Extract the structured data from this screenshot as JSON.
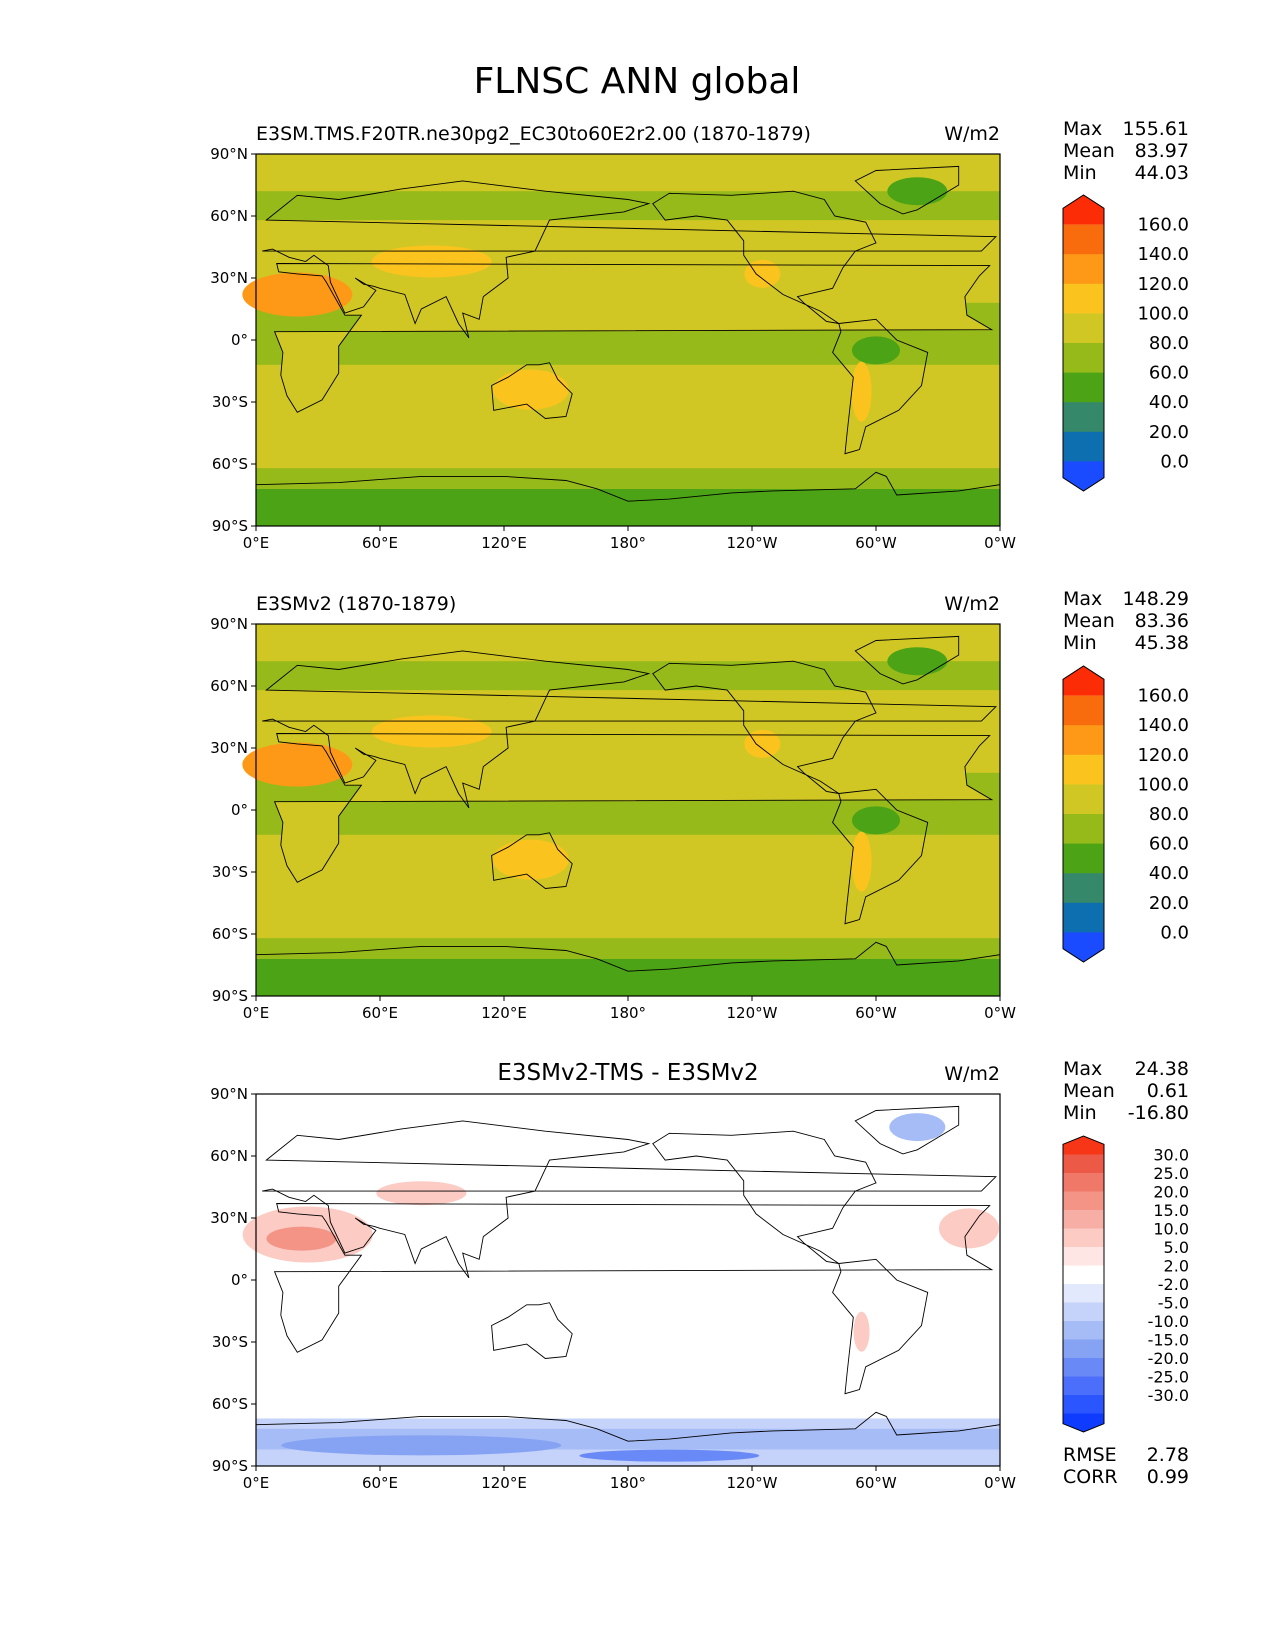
{
  "figure": {
    "title": "FLNSC ANN global"
  },
  "colors": {
    "test_levels": [
      "#1b4bff",
      "#0e6fb0",
      "#35896a",
      "#4ca315",
      "#96ba1a",
      "#d1c724",
      "#fbc31e",
      "#fd9917",
      "#f96c0e",
      "#fc2c07"
    ],
    "diff_levels": [
      "#0f3bff",
      "#2a55ff",
      "#4b6efb",
      "#6889f6",
      "#86a2f3",
      "#a6bcf6",
      "#c5d3fa",
      "#e3e9fc",
      "#ffffff",
      "#fde6e3",
      "#fbcbc4",
      "#f7aea5",
      "#f39487",
      "#ef7868",
      "#ec5a47",
      "#f73618"
    ],
    "coastline": "#000000",
    "land_overlay": "#1a1a1a"
  },
  "panels": [
    {
      "left_label": "E3SM.TMS.F20TR.ne30pg2_EC30to60E2r2.00 (1870-1879)",
      "center_label": "",
      "units": "W/m2",
      "stats": [
        {
          "label": "Max",
          "value": "155.61"
        },
        {
          "label": "Mean",
          "value": "83.97"
        },
        {
          "label": "Min",
          "value": "44.03"
        }
      ],
      "colorbar_ticks": [
        "160.0",
        "140.0",
        "120.0",
        "100.0",
        "80.0",
        "60.0",
        "40.0",
        "20.0",
        "0.0"
      ],
      "extra_stats": []
    },
    {
      "left_label": "E3SMv2 (1870-1879)",
      "center_label": "",
      "units": "W/m2",
      "stats": [
        {
          "label": "Max",
          "value": "148.29"
        },
        {
          "label": "Mean",
          "value": "83.36"
        },
        {
          "label": "Min",
          "value": "45.38"
        }
      ],
      "colorbar_ticks": [
        "160.0",
        "140.0",
        "120.0",
        "100.0",
        "80.0",
        "60.0",
        "40.0",
        "20.0",
        "0.0"
      ],
      "extra_stats": []
    },
    {
      "left_label": "",
      "center_label": "E3SMv2-TMS - E3SMv2",
      "units": "W/m2",
      "stats": [
        {
          "label": "Max",
          "value": "24.38"
        },
        {
          "label": "Mean",
          "value": "0.61"
        },
        {
          "label": "Min",
          "value": "-16.80"
        }
      ],
      "colorbar_ticks": [
        "30.0",
        "25.0",
        "20.0",
        "15.0",
        "10.0",
        "5.0",
        "2.0",
        "-2.0",
        "-5.0",
        "-10.0",
        "-15.0",
        "-20.0",
        "-25.0",
        "-30.0"
      ],
      "extra_stats": [
        {
          "label": "RMSE",
          "value": "2.78"
        },
        {
          "label": "CORR",
          "value": "0.99"
        }
      ]
    }
  ],
  "chart_data": [
    {
      "type": "heatmap",
      "title": "E3SM.TMS.F20TR.ne30pg2_EC30to60E2r2.00 (1870-1879)",
      "variable": "FLNSC",
      "units": "W/m2",
      "x_range": [
        0,
        360
      ],
      "y_range": [
        -90,
        90
      ],
      "x_ticks": [
        "0°E",
        "60°E",
        "120°E",
        "180°",
        "120°W",
        "60°W",
        "0°W"
      ],
      "y_ticks": [
        "90°N",
        "60°N",
        "30°N",
        "0°",
        "30°S",
        "60°S",
        "90°S"
      ],
      "levels": [
        0,
        20,
        40,
        60,
        80,
        100,
        120,
        140,
        160
      ],
      "max": 155.61,
      "mean": 83.97,
      "min": 44.03
    },
    {
      "type": "heatmap",
      "title": "E3SMv2 (1870-1879)",
      "variable": "FLNSC",
      "units": "W/m2",
      "x_range": [
        0,
        360
      ],
      "y_range": [
        -90,
        90
      ],
      "x_ticks": [
        "0°E",
        "60°E",
        "120°E",
        "180°",
        "120°W",
        "60°W",
        "0°W"
      ],
      "y_ticks": [
        "90°N",
        "60°N",
        "30°N",
        "0°",
        "30°S",
        "60°S",
        "90°S"
      ],
      "levels": [
        0,
        20,
        40,
        60,
        80,
        100,
        120,
        140,
        160
      ],
      "max": 148.29,
      "mean": 83.36,
      "min": 45.38
    },
    {
      "type": "heatmap",
      "title": "E3SMv2-TMS - E3SMv2",
      "variable": "FLNSC",
      "units": "W/m2",
      "x_range": [
        0,
        360
      ],
      "y_range": [
        -90,
        90
      ],
      "x_ticks": [
        "0°E",
        "60°E",
        "120°E",
        "180°",
        "120°W",
        "60°W",
        "0°W"
      ],
      "y_ticks": [
        "90°N",
        "60°N",
        "30°N",
        "0°",
        "30°S",
        "60°S",
        "90°S"
      ],
      "levels": [
        -30,
        -25,
        -20,
        -15,
        -10,
        -5,
        -2,
        2,
        5,
        10,
        15,
        20,
        25,
        30
      ],
      "max": 24.38,
      "mean": 0.61,
      "min": -16.8,
      "rmse": 2.78,
      "corr": 0.99
    }
  ]
}
